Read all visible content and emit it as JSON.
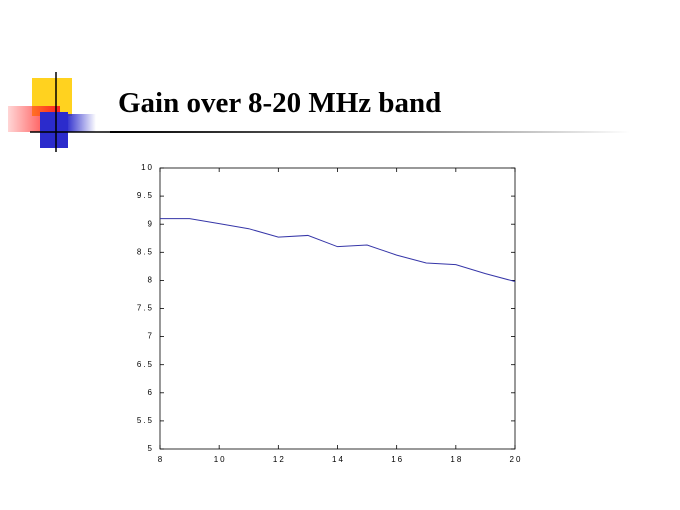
{
  "chart_data": {
    "type": "line",
    "title": "Gain over 8-20 MHz band",
    "x": [
      8,
      9,
      10,
      11,
      12,
      13,
      14,
      15,
      16,
      17,
      18,
      19,
      20
    ],
    "series": [
      {
        "color": "#3636a8",
        "values": [
          9.1,
          9.1,
          9.01,
          8.92,
          8.77,
          8.8,
          8.6,
          8.63,
          8.45,
          8.31,
          8.28,
          8.12,
          7.98
        ]
      }
    ],
    "xlim": [
      8,
      20
    ],
    "xticks": [
      8,
      10,
      12,
      14,
      16,
      18,
      20
    ],
    "ylim": [
      5,
      10
    ],
    "yticks": [
      5,
      5.5,
      6,
      6.5,
      7,
      7.5,
      8,
      8.5,
      9,
      9.5,
      10
    ]
  }
}
